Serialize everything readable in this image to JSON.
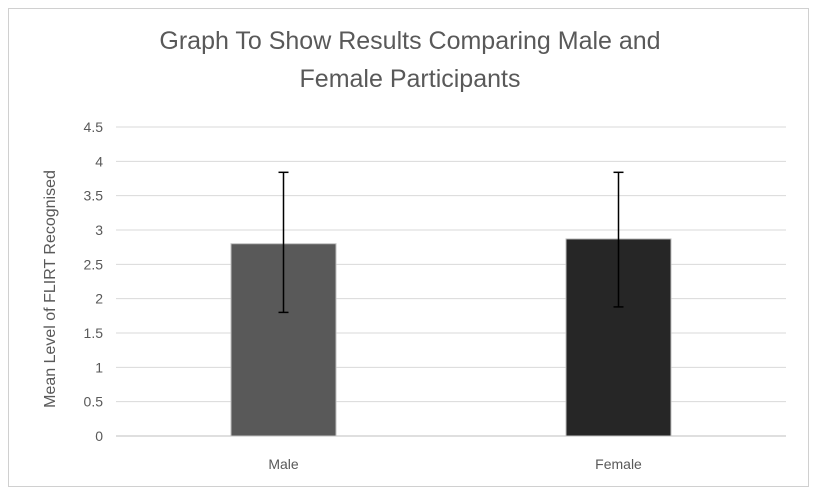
{
  "chart_data": {
    "type": "bar",
    "title_lines": [
      "Graph To Show Results Comparing Male and",
      "Female Participants"
    ],
    "xlabel": "",
    "ylabel": "Mean Level of FLIRT Recognised",
    "categories": [
      "Male",
      "Female"
    ],
    "values": [
      2.8,
      2.87
    ],
    "error": [
      {
        "low": 1.8,
        "high": 3.84
      },
      {
        "low": 1.88,
        "high": 3.84
      }
    ],
    "bar_colors": [
      "#595959",
      "#262626"
    ],
    "ylim": [
      0,
      4.5
    ],
    "yticks": [
      "0",
      "0.5",
      "1",
      "1.5",
      "2",
      "2.5",
      "3",
      "3.5",
      "4",
      "4.5"
    ],
    "grid": true,
    "legend": "none"
  }
}
